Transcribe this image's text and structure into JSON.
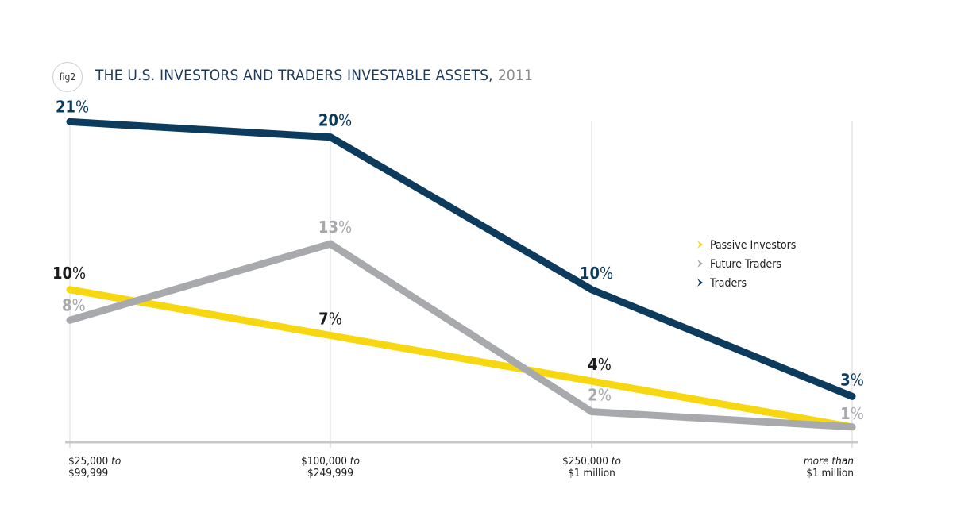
{
  "figure": {
    "badge": "fig2",
    "title": "THE U.S. INVESTORS AND TRADERS INVESTABLE ASSETS,",
    "year": "2011"
  },
  "chart_data": {
    "type": "line",
    "title": "THE U.S. INVESTORS AND TRADERS INVESTABLE ASSETS, 2011",
    "categories": [
      {
        "line1": "$25,000",
        "line1_italic": "to",
        "line2": "$99,999"
      },
      {
        "line1": "$100,000",
        "line1_italic": "to",
        "line2": "$249,999"
      },
      {
        "line1": "$250,000",
        "line1_italic": "to",
        "line2": "$1 million"
      },
      {
        "line1": "",
        "line1_italic": "more than",
        "line2": "$1 million"
      }
    ],
    "ylim": [
      0,
      23
    ],
    "unit": "%",
    "series": [
      {
        "name": "Passive Investors",
        "color": "#f7d70f",
        "label_color": "#1a1a1a",
        "values": [
          10,
          7,
          4,
          1
        ]
      },
      {
        "name": "Future Traders",
        "color": "#a7a9ac",
        "label_color": "#a7a9ac",
        "values": [
          8,
          13,
          2,
          1
        ]
      },
      {
        "name": "Traders",
        "color": "#0d3b5e",
        "label_color": "#0d3b5e",
        "values": [
          21,
          20,
          10,
          3
        ]
      }
    ],
    "legend_position": "right"
  }
}
